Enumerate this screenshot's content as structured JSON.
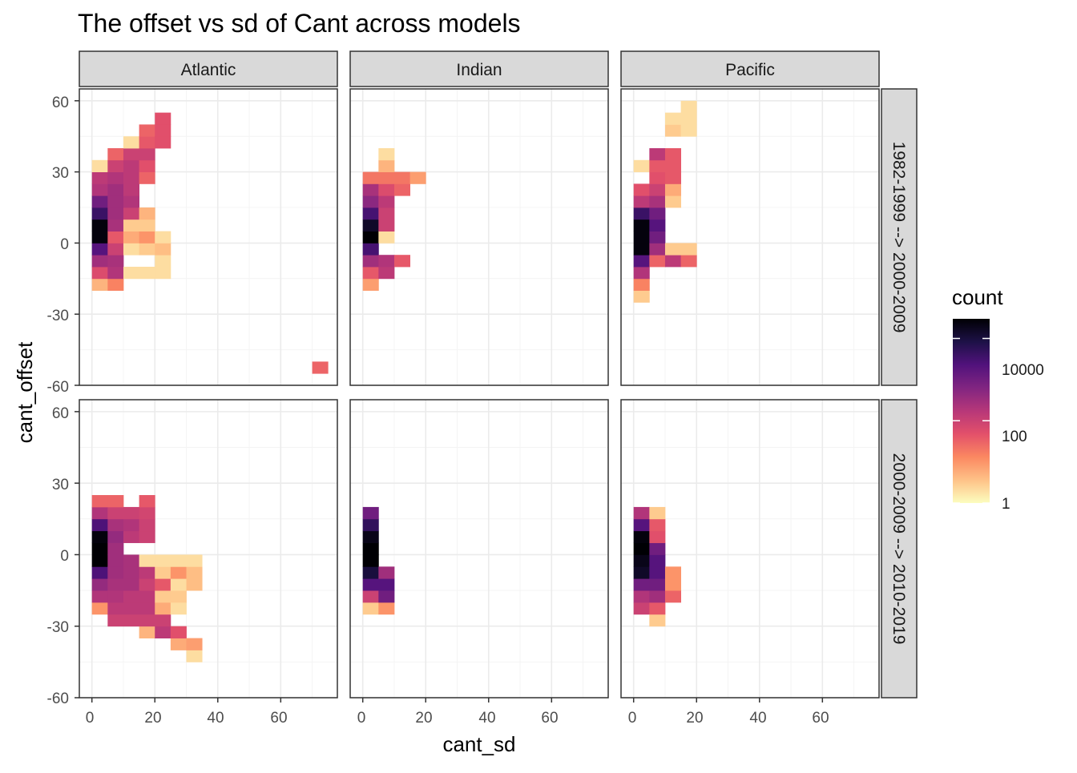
{
  "chart_data": {
    "type": "heatmap",
    "title": "The offset vs sd of Cant across models",
    "xlabel": "cant_sd",
    "ylabel": "cant_offset",
    "columns": [
      "Atlantic",
      "Indian",
      "Pacific"
    ],
    "rows": [
      "1982-1999 --> 2000-2009",
      "2000-2009 --> 2010-2019"
    ],
    "xlim": [
      -4,
      78
    ],
    "ylim": [
      -60,
      65
    ],
    "bin_width": {
      "x": 5,
      "y": 5
    },
    "x_ticks": [
      0,
      20,
      40,
      60
    ],
    "x_tick_labels": [
      "0",
      "20",
      "40",
      "60"
    ],
    "y_ticks": [
      -60,
      -30,
      0,
      30,
      60
    ],
    "y_tick_labels": [
      "-60",
      "-30",
      "0",
      "30",
      "60"
    ],
    "legend": {
      "title": "count",
      "scale": "log10",
      "min_count": 1,
      "max_count": 30000,
      "ticks": [
        1,
        100,
        10000
      ],
      "tick_labels": [
        "1",
        "100",
        "10000"
      ],
      "palette": [
        "#FCFDBF",
        "#FEC287",
        "#FB8861",
        "#E3506A",
        "#B73779",
        "#812581",
        "#51127C",
        "#1D1147",
        "#000004"
      ],
      "position": "right"
    },
    "colors": {
      "panel_border": "#333333",
      "grid_major": "#EBEBEB",
      "strip_fill": "#D9D9D9",
      "axis_text": "#4D4D4D"
    },
    "panels": [
      {
        "col": "Atlantic",
        "row": "1982-1999 --> 2000-2009",
        "cells": [
          [
            0,
            -20,
            5
          ],
          [
            0,
            -15,
            60
          ],
          [
            0,
            -10,
            300
          ],
          [
            0,
            -5,
            2000
          ],
          [
            0,
            0,
            25000
          ],
          [
            0,
            5,
            25000
          ],
          [
            0,
            10,
            4000
          ],
          [
            0,
            15,
            1000
          ],
          [
            0,
            20,
            200
          ],
          [
            0,
            25,
            150
          ],
          [
            0,
            30,
            2
          ],
          [
            5,
            -20,
            15
          ],
          [
            5,
            -15,
            200
          ],
          [
            5,
            -10,
            250
          ],
          [
            5,
            -5,
            100
          ],
          [
            5,
            0,
            40
          ],
          [
            5,
            5,
            250
          ],
          [
            5,
            10,
            300
          ],
          [
            5,
            15,
            300
          ],
          [
            5,
            20,
            300
          ],
          [
            5,
            25,
            200
          ],
          [
            5,
            30,
            100
          ],
          [
            5,
            35,
            30
          ],
          [
            10,
            -15,
            2
          ],
          [
            10,
            -5,
            2
          ],
          [
            10,
            0,
            6
          ],
          [
            10,
            5,
            3
          ],
          [
            10,
            10,
            100
          ],
          [
            10,
            15,
            200
          ],
          [
            10,
            20,
            150
          ],
          [
            10,
            25,
            150
          ],
          [
            10,
            30,
            150
          ],
          [
            10,
            35,
            100
          ],
          [
            10,
            40,
            2
          ],
          [
            15,
            -15,
            2
          ],
          [
            15,
            -5,
            3
          ],
          [
            15,
            0,
            10
          ],
          [
            15,
            5,
            3
          ],
          [
            15,
            10,
            5
          ],
          [
            15,
            25,
            30
          ],
          [
            15,
            30,
            50
          ],
          [
            15,
            35,
            100
          ],
          [
            15,
            40,
            40
          ],
          [
            15,
            45,
            30
          ],
          [
            20,
            -15,
            2
          ],
          [
            20,
            -10,
            2
          ],
          [
            20,
            -5,
            4
          ],
          [
            20,
            0,
            2
          ],
          [
            20,
            40,
            50
          ],
          [
            20,
            45,
            50
          ],
          [
            20,
            50,
            50
          ],
          [
            70,
            -55,
            30
          ]
        ]
      },
      {
        "col": "Indian",
        "row": "1982-1999 --> 2000-2009",
        "cells": [
          [
            0,
            -20,
            8
          ],
          [
            0,
            -15,
            40
          ],
          [
            0,
            -10,
            300
          ],
          [
            0,
            -5,
            3000
          ],
          [
            0,
            0,
            30000
          ],
          [
            0,
            5,
            15000
          ],
          [
            0,
            10,
            3000
          ],
          [
            0,
            15,
            500
          ],
          [
            0,
            20,
            250
          ],
          [
            0,
            25,
            20
          ],
          [
            5,
            -15,
            150
          ],
          [
            5,
            -10,
            200
          ],
          [
            5,
            0,
            2
          ],
          [
            5,
            5,
            100
          ],
          [
            5,
            10,
            100
          ],
          [
            5,
            15,
            150
          ],
          [
            5,
            20,
            60
          ],
          [
            5,
            25,
            20
          ],
          [
            5,
            30,
            5
          ],
          [
            5,
            35,
            2
          ],
          [
            10,
            -10,
            40
          ],
          [
            10,
            20,
            30
          ],
          [
            10,
            25,
            20
          ],
          [
            15,
            25,
            8
          ]
        ]
      },
      {
        "col": "Pacific",
        "row": "1982-1999 --> 2000-2009",
        "cells": [
          [
            0,
            -25,
            3
          ],
          [
            0,
            -20,
            15
          ],
          [
            0,
            -15,
            200
          ],
          [
            0,
            -10,
            2000
          ],
          [
            0,
            -5,
            25000
          ],
          [
            0,
            0,
            25000
          ],
          [
            0,
            5,
            25000
          ],
          [
            0,
            10,
            4000
          ],
          [
            0,
            15,
            150
          ],
          [
            0,
            20,
            50
          ],
          [
            0,
            30,
            2
          ],
          [
            5,
            -10,
            30
          ],
          [
            5,
            -5,
            300
          ],
          [
            5,
            0,
            1000
          ],
          [
            5,
            5,
            2000
          ],
          [
            5,
            10,
            1000
          ],
          [
            5,
            15,
            250
          ],
          [
            5,
            20,
            100
          ],
          [
            5,
            25,
            50
          ],
          [
            5,
            30,
            40
          ],
          [
            5,
            35,
            150
          ],
          [
            10,
            -10,
            150
          ],
          [
            10,
            -5,
            3
          ],
          [
            10,
            15,
            3
          ],
          [
            10,
            20,
            6
          ],
          [
            10,
            25,
            40
          ],
          [
            10,
            30,
            40
          ],
          [
            10,
            35,
            40
          ],
          [
            10,
            45,
            3
          ],
          [
            10,
            50,
            2
          ],
          [
            15,
            -10,
            30
          ],
          [
            15,
            -5,
            3
          ],
          [
            15,
            45,
            2
          ],
          [
            15,
            50,
            2
          ],
          [
            15,
            55,
            2
          ]
        ]
      },
      {
        "col": "Atlantic",
        "row": "2000-2009 --> 2010-2019",
        "cells": [
          [
            0,
            -25,
            10
          ],
          [
            0,
            -20,
            200
          ],
          [
            0,
            -15,
            400
          ],
          [
            0,
            -10,
            2500
          ],
          [
            0,
            -5,
            30000
          ],
          [
            0,
            0,
            30000
          ],
          [
            0,
            5,
            25000
          ],
          [
            0,
            10,
            2500
          ],
          [
            0,
            15,
            200
          ],
          [
            0,
            20,
            30
          ],
          [
            5,
            -30,
            100
          ],
          [
            5,
            -25,
            150
          ],
          [
            5,
            -20,
            200
          ],
          [
            5,
            -15,
            250
          ],
          [
            5,
            -10,
            300
          ],
          [
            5,
            -5,
            300
          ],
          [
            5,
            0,
            300
          ],
          [
            5,
            5,
            400
          ],
          [
            5,
            10,
            250
          ],
          [
            5,
            15,
            100
          ],
          [
            5,
            20,
            30
          ],
          [
            10,
            -30,
            100
          ],
          [
            10,
            -25,
            150
          ],
          [
            10,
            -20,
            150
          ],
          [
            10,
            -15,
            250
          ],
          [
            10,
            -10,
            250
          ],
          [
            10,
            -5,
            250
          ],
          [
            10,
            5,
            150
          ],
          [
            10,
            10,
            200
          ],
          [
            10,
            15,
            100
          ],
          [
            15,
            -35,
            5
          ],
          [
            15,
            -30,
            100
          ],
          [
            15,
            -25,
            150
          ],
          [
            15,
            -20,
            150
          ],
          [
            15,
            -15,
            100
          ],
          [
            15,
            -10,
            150
          ],
          [
            15,
            -5,
            2
          ],
          [
            15,
            5,
            100
          ],
          [
            15,
            10,
            100
          ],
          [
            15,
            15,
            80
          ],
          [
            15,
            20,
            40
          ],
          [
            20,
            -35,
            150
          ],
          [
            20,
            -30,
            100
          ],
          [
            20,
            -25,
            6
          ],
          [
            20,
            -20,
            3
          ],
          [
            20,
            -15,
            40
          ],
          [
            20,
            -10,
            3
          ],
          [
            20,
            -5,
            2
          ],
          [
            25,
            -40,
            6
          ],
          [
            25,
            -35,
            50
          ],
          [
            25,
            -25,
            2
          ],
          [
            25,
            -20,
            3
          ],
          [
            25,
            -15,
            2
          ],
          [
            25,
            -10,
            10
          ],
          [
            25,
            -5,
            2
          ],
          [
            30,
            -45,
            2
          ],
          [
            30,
            -40,
            8
          ],
          [
            30,
            -15,
            4
          ],
          [
            30,
            -10,
            4
          ],
          [
            30,
            -5,
            2
          ]
        ]
      },
      {
        "col": "Indian",
        "row": "2000-2009 --> 2010-2019",
        "cells": [
          [
            0,
            -25,
            3
          ],
          [
            0,
            -20,
            100
          ],
          [
            0,
            -15,
            2000
          ],
          [
            0,
            -10,
            10000
          ],
          [
            0,
            -5,
            30000
          ],
          [
            0,
            0,
            30000
          ],
          [
            0,
            5,
            20000
          ],
          [
            0,
            10,
            5000
          ],
          [
            0,
            15,
            1000
          ],
          [
            5,
            -25,
            10
          ],
          [
            5,
            -20,
            1000
          ],
          [
            5,
            -15,
            2000
          ],
          [
            5,
            -10,
            300
          ]
        ]
      },
      {
        "col": "Pacific",
        "row": "2000-2009 --> 2010-2019",
        "cells": [
          [
            0,
            -25,
            100
          ],
          [
            0,
            -20,
            200
          ],
          [
            0,
            -15,
            1000
          ],
          [
            0,
            -10,
            15000
          ],
          [
            0,
            -5,
            20000
          ],
          [
            0,
            0,
            30000
          ],
          [
            0,
            5,
            25000
          ],
          [
            0,
            10,
            2000
          ],
          [
            0,
            15,
            200
          ],
          [
            5,
            -30,
            3
          ],
          [
            5,
            -25,
            40
          ],
          [
            5,
            -20,
            300
          ],
          [
            5,
            -15,
            1000
          ],
          [
            5,
            -10,
            2000
          ],
          [
            5,
            -5,
            2000
          ],
          [
            5,
            0,
            1000
          ],
          [
            5,
            5,
            50
          ],
          [
            5,
            10,
            40
          ],
          [
            5,
            15,
            3
          ],
          [
            10,
            -20,
            30
          ],
          [
            10,
            -15,
            10
          ],
          [
            10,
            -10,
            10
          ]
        ]
      }
    ]
  }
}
